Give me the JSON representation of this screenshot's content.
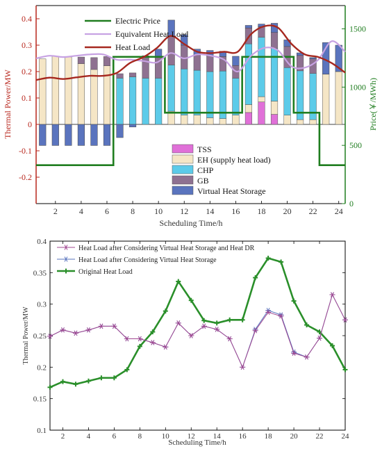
{
  "chart_data": [
    {
      "type": "bar",
      "x": [
        1,
        2,
        3,
        4,
        5,
        6,
        7,
        8,
        9,
        10,
        11,
        12,
        13,
        14,
        15,
        16,
        17,
        18,
        19,
        20,
        21,
        22,
        23,
        24
      ],
      "xlabel": "Scheduling Time/h",
      "ylabel": "Thermal Power/MW",
      "ylabel2": "Price(￥/MWh)",
      "ylim": [
        -0.3,
        0.45
      ],
      "ylim2": [
        0,
        1700
      ],
      "xticks": [
        2,
        4,
        6,
        8,
        10,
        12,
        14,
        16,
        18,
        20,
        22,
        24
      ],
      "yticks": [
        -0.2,
        -0.1,
        0,
        0.1,
        0.2,
        0.3,
        0.4
      ],
      "yticks2": [
        0,
        500,
        1000,
        1500
      ],
      "grid": false,
      "colors": {
        "tss": "#e070d8",
        "eh": "#f5e6c6",
        "chp": "#5ccbe9",
        "gb": "#8e7191",
        "vhs": "#5a74be",
        "price": "#1f7d1f",
        "equiv": "#c7a2e3",
        "heat": "#a6281f",
        "left_axis": "#b8261c",
        "right_axis": "#1f7d1f"
      },
      "series": [
        {
          "name": "TSS",
          "stack": true,
          "values": [
            0,
            0,
            0,
            0,
            0,
            0,
            0,
            0,
            0,
            0,
            0,
            0,
            0,
            0,
            0,
            0,
            0.045,
            0.085,
            0.038,
            0,
            0,
            0,
            0,
            0
          ]
        },
        {
          "name": "EH (supply heat load)",
          "stack": true,
          "values": [
            0.248,
            0.258,
            0.255,
            0.23,
            0.208,
            0.222,
            0,
            0,
            0,
            0,
            0.05,
            0.035,
            0.035,
            0.025,
            0.022,
            0.035,
            0.03,
            0.02,
            0.05,
            0.035,
            0.018,
            0.018,
            0.19,
            0.2
          ]
        },
        {
          "name": "CHP",
          "stack": true,
          "values": [
            0,
            0,
            0,
            0,
            0,
            0,
            0.175,
            0.18,
            0.175,
            0.175,
            0.175,
            0.175,
            0.17,
            0.175,
            0.18,
            0.14,
            0.23,
            0.225,
            0.2,
            0.18,
            0.185,
            0.175,
            0,
            0
          ]
        },
        {
          "name": "GB",
          "stack": true,
          "values": [
            0,
            0,
            0,
            0.025,
            0.045,
            0.035,
            0.017,
            0.015,
            0.08,
            0.08,
            0.11,
            0.09,
            0.06,
            0.06,
            0.055,
            0.048,
            0.06,
            0.04,
            0.06,
            0.08,
            0.058,
            0.055,
            0,
            0
          ]
        },
        {
          "name": "Virtual Heat Storage",
          "values": [
            -0.08,
            -0.08,
            -0.08,
            -0.08,
            -0.08,
            -0.08,
            -0.05,
            -0.01,
            0.005,
            0.03,
            0.06,
            0.04,
            0.02,
            0.02,
            0.02,
            0.035,
            0.01,
            0.01,
            0.035,
            0.025,
            0.01,
            0.005,
            0.12,
            0.1
          ]
        },
        {
          "name": "Electric Price",
          "type": "line",
          "axis": "right",
          "values": [
            330,
            330,
            330,
            330,
            330,
            330,
            1260,
            1260,
            1260,
            1260,
            780,
            780,
            780,
            780,
            780,
            780,
            1260,
            1260,
            1260,
            1260,
            780,
            780,
            330,
            330
          ]
        },
        {
          "name": "Equivalent Heat Load",
          "type": "line",
          "values": [
            0.25,
            0.26,
            0.255,
            0.26,
            0.265,
            0.265,
            0.245,
            0.245,
            0.24,
            0.235,
            0.27,
            0.25,
            0.265,
            0.26,
            0.245,
            0.2,
            0.26,
            0.29,
            0.28,
            0.22,
            0.215,
            0.245,
            0.315,
            0.275
          ]
        },
        {
          "name": "Heat Load",
          "type": "line",
          "values": [
            0.168,
            0.177,
            0.172,
            0.178,
            0.184,
            0.184,
            0.195,
            0.233,
            0.255,
            0.29,
            0.335,
            0.305,
            0.275,
            0.27,
            0.275,
            0.275,
            0.342,
            0.372,
            0.366,
            0.305,
            0.265,
            0.255,
            0.232,
            0.196
          ]
        }
      ],
      "legend": [
        "Electric Price",
        "Equivalent Heat Load",
        "Heat Load",
        "TSS",
        "EH (supply heat load)",
        "CHP",
        "GB",
        "Virtual Heat Storage"
      ]
    },
    {
      "type": "line",
      "x": [
        1,
        2,
        3,
        4,
        5,
        6,
        7,
        8,
        9,
        10,
        11,
        12,
        13,
        14,
        15,
        16,
        17,
        18,
        19,
        20,
        21,
        22,
        23,
        24
      ],
      "xlabel": "Scheduling Time/h",
      "ylabel": "Thermal Power/MW",
      "ylim": [
        0.1,
        0.4
      ],
      "xticks": [
        2,
        4,
        6,
        8,
        10,
        12,
        14,
        16,
        18,
        20,
        22,
        24
      ],
      "yticks": [
        0.1,
        0.15,
        0.2,
        0.25,
        0.3,
        0.35,
        0.4
      ],
      "grid": false,
      "colors": {
        "dr": "#a04790",
        "vhs": "#5a74be",
        "orig": "#2a8f2a"
      },
      "series": [
        {
          "name": "Heat Load after Considering Virtual Heat Storage and Heat DR",
          "values": [
            0.249,
            0.259,
            0.254,
            0.259,
            0.265,
            0.265,
            0.245,
            0.245,
            0.239,
            0.232,
            0.27,
            0.25,
            0.265,
            0.26,
            0.245,
            0.2,
            0.258,
            0.287,
            0.281,
            0.222,
            0.216,
            0.246,
            0.315,
            0.275
          ]
        },
        {
          "name": "Heat Load after Considering Virtual Heat Storage",
          "values": [
            0.249,
            0.259,
            0.254,
            0.259,
            0.265,
            0.265,
            0.245,
            0.245,
            0.239,
            0.232,
            0.27,
            0.25,
            0.265,
            0.26,
            0.245,
            0.2,
            0.26,
            0.29,
            0.283,
            0.224,
            0.216,
            0.246,
            0.315,
            0.275
          ]
        },
        {
          "name": "Original Heat Load",
          "values": [
            0.168,
            0.177,
            0.173,
            0.178,
            0.183,
            0.183,
            0.196,
            0.233,
            0.256,
            0.289,
            0.336,
            0.306,
            0.274,
            0.27,
            0.275,
            0.275,
            0.342,
            0.373,
            0.367,
            0.305,
            0.267,
            0.256,
            0.234,
            0.196
          ]
        }
      ],
      "legend": [
        "Heat Load after Considering Virtual Heat Storage and Heat DR",
        "Heat Load after Considering Virtual Heat Storage",
        "Original Heat Load"
      ]
    }
  ]
}
